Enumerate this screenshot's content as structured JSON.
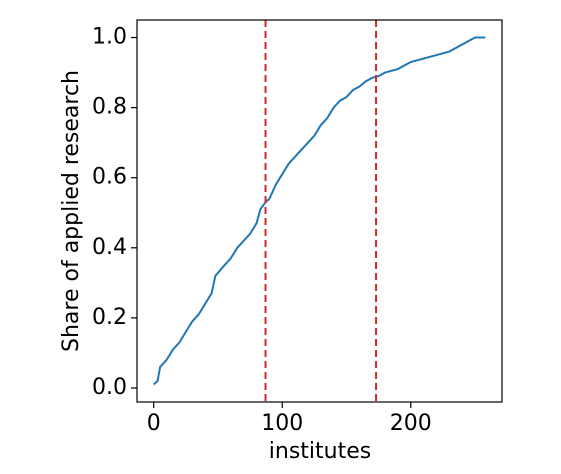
{
  "chart_data": {
    "type": "line",
    "x_label": "institutes",
    "y_label": "Share of applied research",
    "x": [
      0,
      3,
      5,
      10,
      15,
      20,
      25,
      30,
      35,
      40,
      45,
      48,
      55,
      60,
      65,
      70,
      75,
      80,
      83,
      87,
      90,
      95,
      100,
      105,
      110,
      115,
      120,
      125,
      130,
      135,
      140,
      145,
      150,
      155,
      160,
      165,
      170,
      175,
      180,
      190,
      200,
      210,
      220,
      230,
      240,
      250,
      258
    ],
    "values": [
      0.01,
      0.02,
      0.06,
      0.08,
      0.11,
      0.13,
      0.16,
      0.19,
      0.21,
      0.24,
      0.27,
      0.32,
      0.35,
      0.37,
      0.4,
      0.42,
      0.44,
      0.47,
      0.51,
      0.53,
      0.54,
      0.58,
      0.61,
      0.64,
      0.66,
      0.68,
      0.7,
      0.72,
      0.75,
      0.77,
      0.8,
      0.82,
      0.83,
      0.85,
      0.86,
      0.875,
      0.885,
      0.89,
      0.9,
      0.91,
      0.93,
      0.94,
      0.95,
      0.96,
      0.98,
      1.0,
      1.0
    ],
    "color": "#1f77b4",
    "vlines": [
      87,
      173
    ],
    "vline_color": "#d62728",
    "xlim": [
      -13,
      271
    ],
    "ylim": [
      -0.04,
      1.05
    ],
    "xticks": [
      0,
      100,
      200
    ],
    "yticks": [
      {
        "value": 0,
        "label": "0.0"
      },
      {
        "value": 0.2,
        "label": "0.2"
      },
      {
        "value": 0.4,
        "label": "0.4"
      },
      {
        "value": 0.6,
        "label": "0.6"
      },
      {
        "value": 0.8,
        "label": "0.8"
      },
      {
        "value": 1,
        "label": "1.0"
      }
    ]
  }
}
